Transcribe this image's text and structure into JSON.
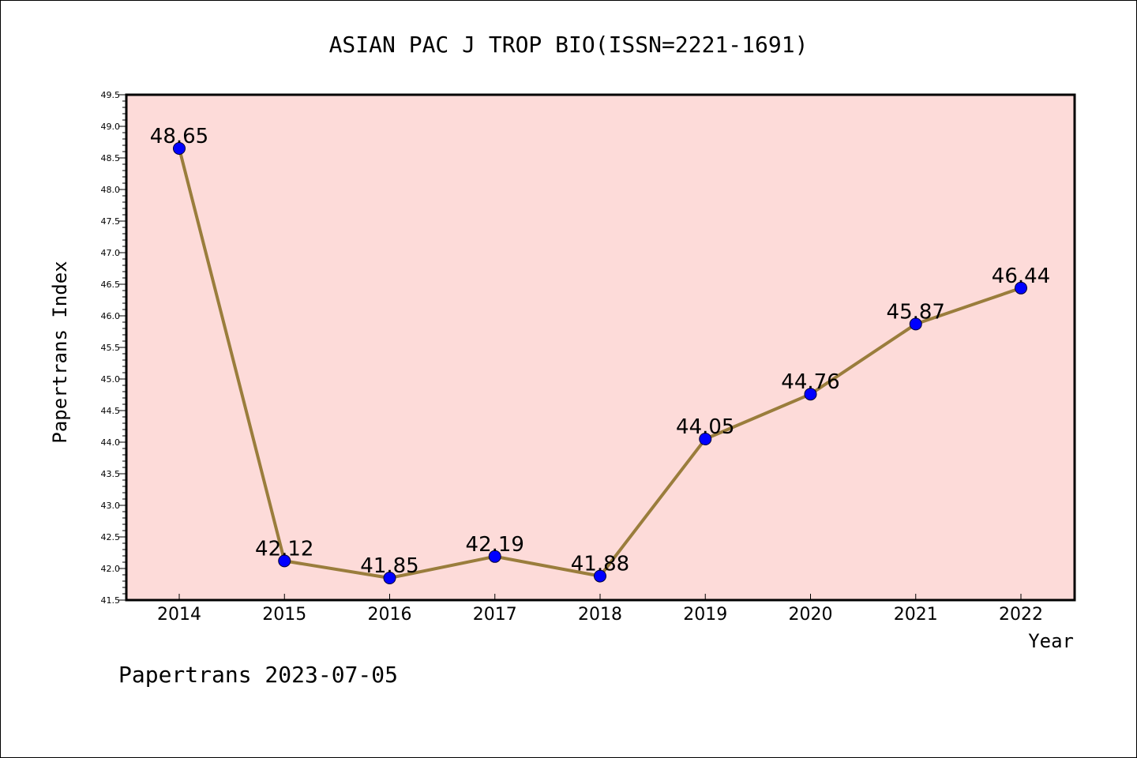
{
  "chart_data": {
    "type": "line",
    "title": "ASIAN PAC J TROP BIO(ISSN=2221-1691)",
    "xlabel": "Year",
    "ylabel": "Papertrans Index",
    "categories": [
      "2014",
      "2015",
      "2016",
      "2017",
      "2018",
      "2019",
      "2020",
      "2021",
      "2022"
    ],
    "values": [
      48.65,
      42.12,
      41.85,
      42.19,
      41.88,
      44.05,
      44.76,
      45.87,
      46.44
    ],
    "data_labels": [
      "48.65",
      "42.12",
      "41.85",
      "42.19",
      "41.88",
      "44.05",
      "44.76",
      "45.87",
      "46.44"
    ],
    "ylim": [
      41.5,
      49.5
    ],
    "ytick_labels": [
      "41.5",
      "42.0",
      "42.5",
      "43.0",
      "43.5",
      "44.0",
      "44.5",
      "45.0",
      "45.5",
      "46.0",
      "46.5",
      "47.0",
      "47.5",
      "48.0",
      "48.5",
      "49.0",
      "49.5"
    ],
    "grid": false,
    "legend": "none"
  },
  "footer_text": "Papertrans 2023-07-05",
  "colors": {
    "plot_background": "#fddbd9",
    "line": "#9a7d3c",
    "marker": "#0000ff",
    "axis": "#000000"
  }
}
